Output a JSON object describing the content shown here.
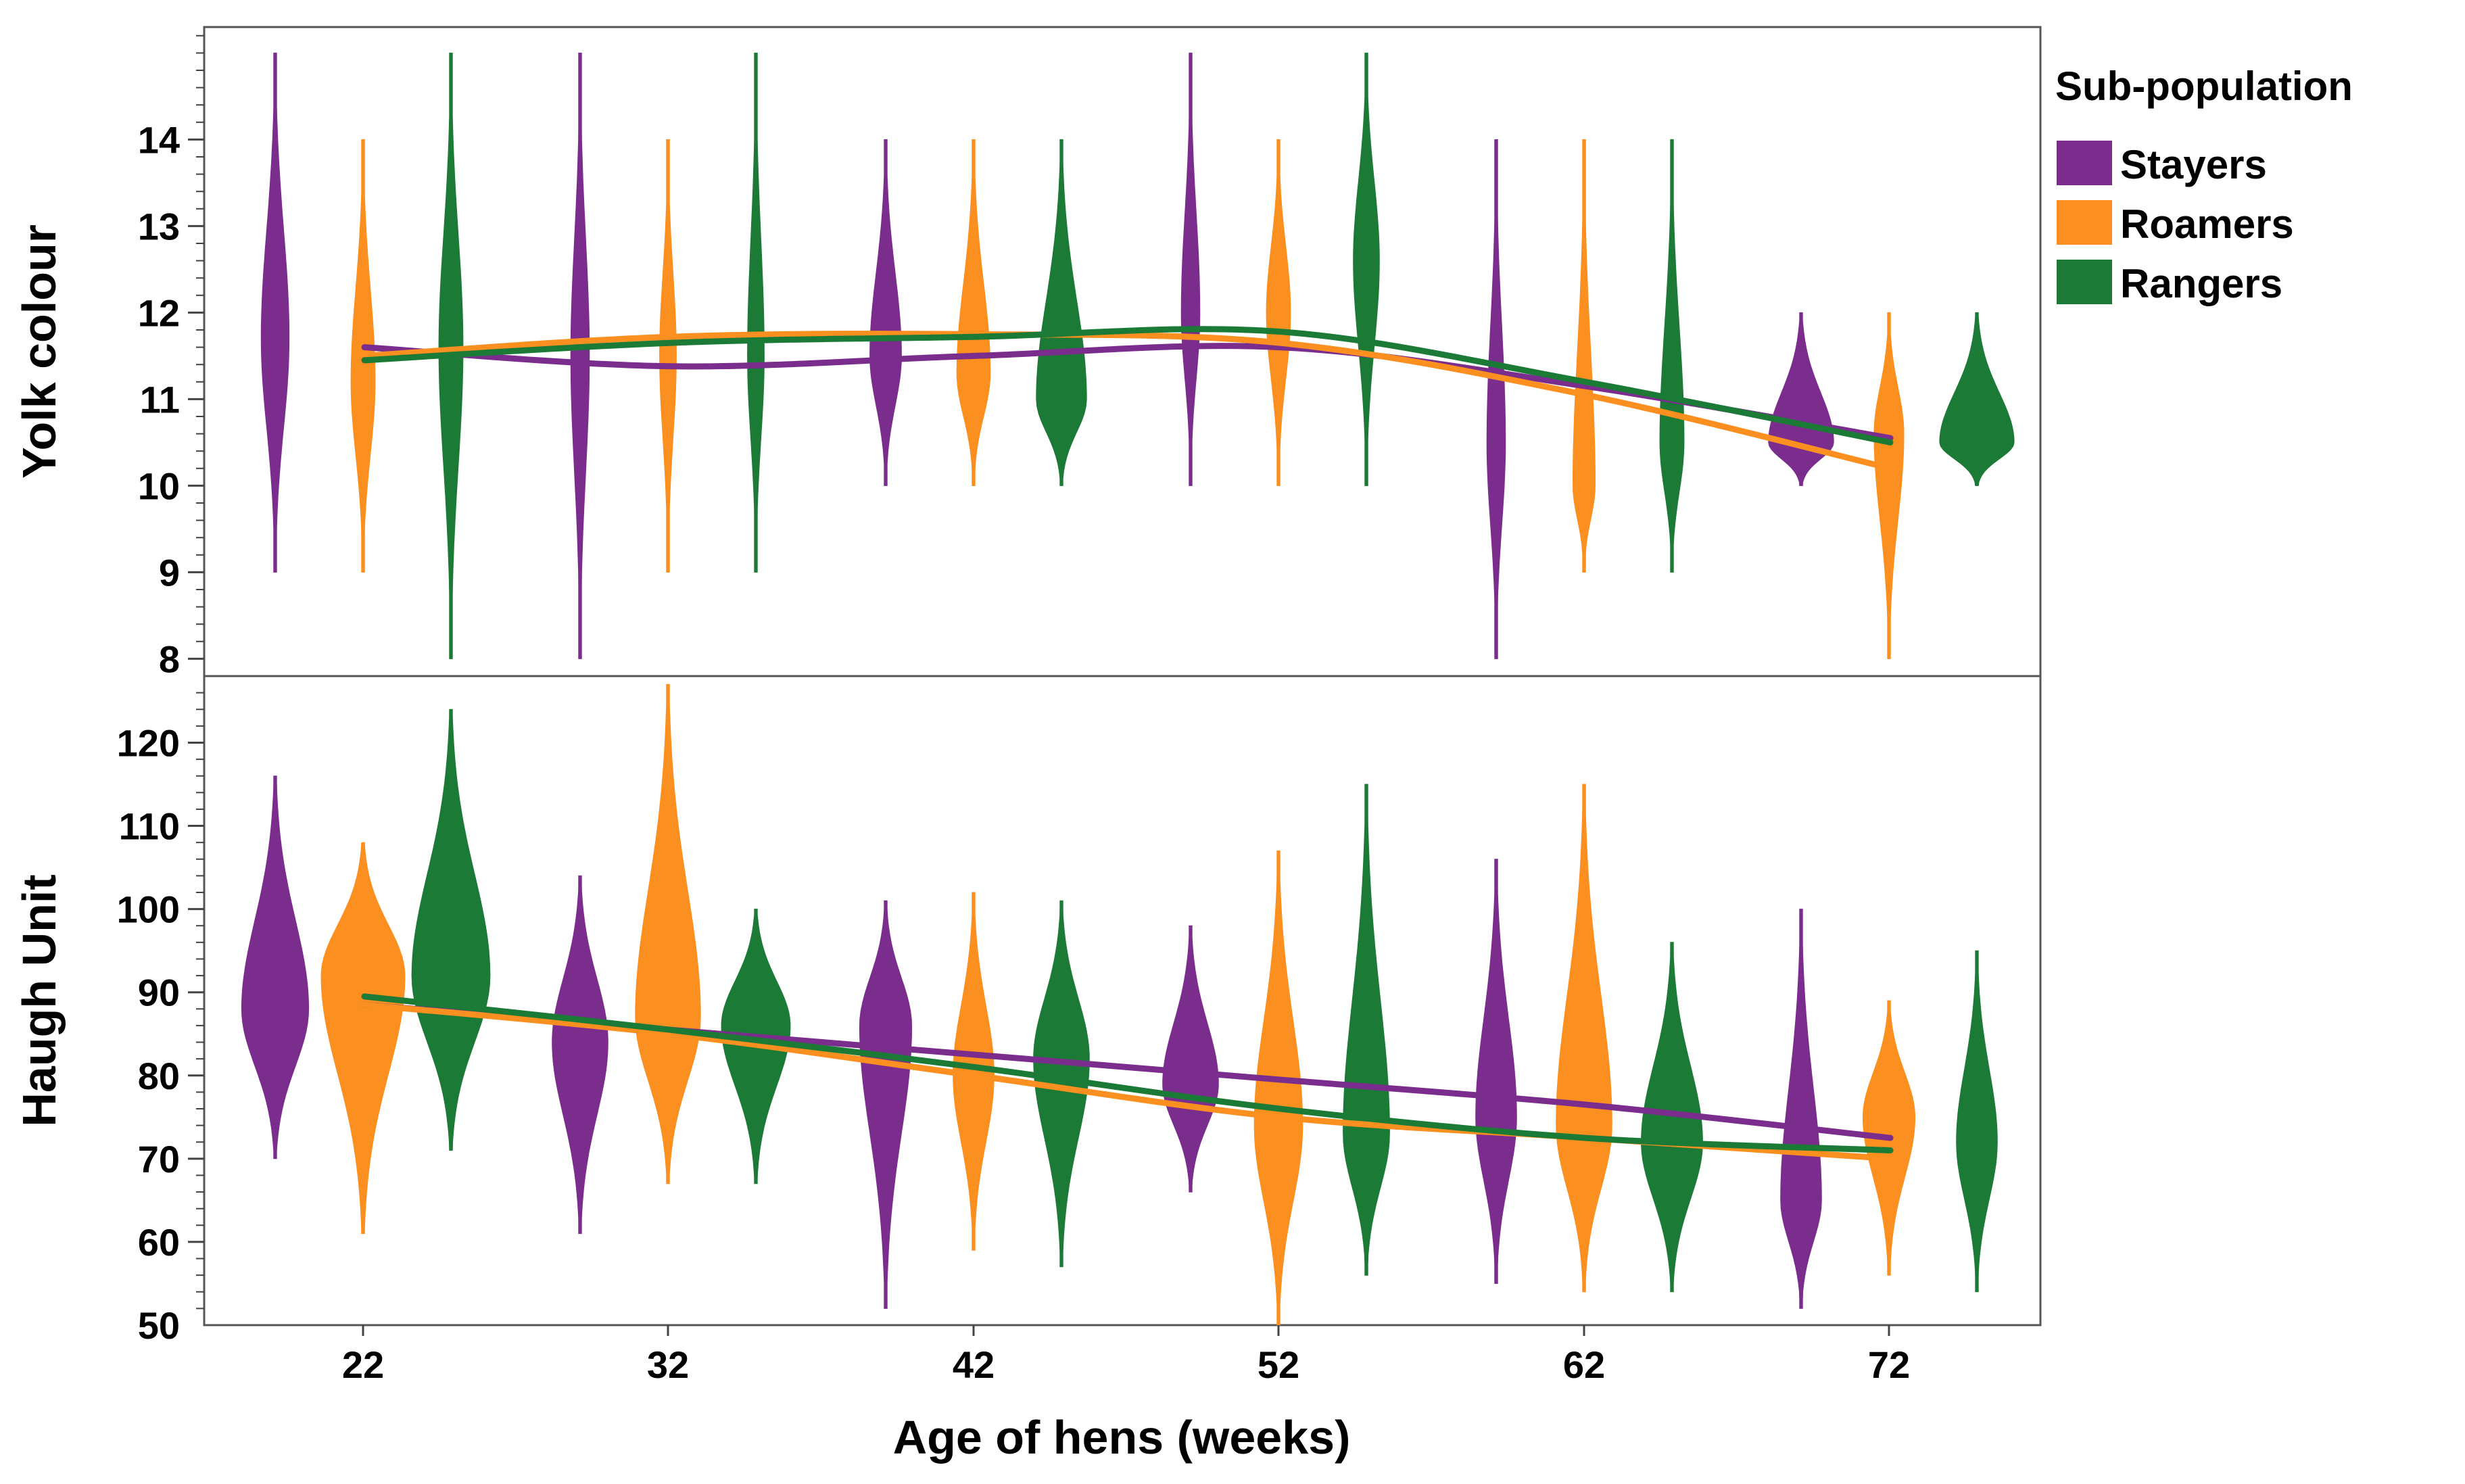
{
  "colors": {
    "Stayers": "#7B2D8E",
    "Roamers": "#FB8F1F",
    "Rangers": "#1B7A36"
  },
  "chart_data": {
    "type": "violin",
    "xlabel": "Age of hens (weeks)",
    "x_ticks": [
      "22",
      "32",
      "42",
      "52",
      "62",
      "72"
    ],
    "legend": {
      "title": "Sub-population",
      "position": "right",
      "entries": [
        "Stayers",
        "Roamers",
        "Rangers"
      ]
    },
    "panels": [
      {
        "ylabel": "Yolk colour",
        "ylim": [
          7.8,
          15.3
        ],
        "yticks": [
          8,
          9,
          10,
          11,
          12,
          13,
          14
        ],
        "series": [
          {
            "name": "Stayers",
            "violins": [
              {
                "week": 22,
                "min": 9,
                "max": 15,
                "peak": 11.7,
                "width": 0.15
              },
              {
                "week": 32,
                "min": 8,
                "max": 15,
                "peak": 11.5,
                "width": 0.1
              },
              {
                "week": 42,
                "min": 10,
                "max": 14,
                "peak": 11.5,
                "width": 0.17
              },
              {
                "week": 52,
                "min": 10,
                "max": 15,
                "peak": 12.0,
                "width": 0.1
              },
              {
                "week": 62,
                "min": 8,
                "max": 14,
                "peak": 10.5,
                "width": 0.1
              },
              {
                "week": 72,
                "min": 10,
                "max": 12,
                "peak": 10.5,
                "width": 0.35
              }
            ],
            "trend": [
              11.6,
              11.38,
              11.5,
              11.6,
              11.15,
              10.55
            ]
          },
          {
            "name": "Roamers",
            "violins": [
              {
                "week": 22,
                "min": 9,
                "max": 14,
                "peak": 11.2,
                "width": 0.13
              },
              {
                "week": 32,
                "min": 9,
                "max": 14,
                "peak": 11.5,
                "width": 0.09
              },
              {
                "week": 42,
                "min": 10,
                "max": 14,
                "peak": 11.3,
                "width": 0.18
              },
              {
                "week": 52,
                "min": 10,
                "max": 14,
                "peak": 12.0,
                "width": 0.13
              },
              {
                "week": 62,
                "min": 9,
                "max": 14,
                "peak": 10.0,
                "width": 0.12
              },
              {
                "week": 72,
                "min": 8,
                "max": 12,
                "peak": 10.6,
                "width": 0.16
              }
            ],
            "trend": [
              11.5,
              11.72,
              11.75,
              11.65,
              11.05,
              10.2
            ]
          },
          {
            "name": "Rangers",
            "violins": [
              {
                "week": 22,
                "min": 8,
                "max": 15,
                "peak": 11.6,
                "width": 0.13
              },
              {
                "week": 32,
                "min": 9,
                "max": 15,
                "peak": 11.5,
                "width": 0.09
              },
              {
                "week": 42,
                "min": 10,
                "max": 14,
                "peak": 11.0,
                "width": 0.27
              },
              {
                "week": 52,
                "min": 10,
                "max": 15,
                "peak": 12.6,
                "width": 0.14
              },
              {
                "week": 62,
                "min": 9,
                "max": 14,
                "peak": 10.5,
                "width": 0.13
              },
              {
                "week": 72,
                "min": 10,
                "max": 12,
                "peak": 10.5,
                "width": 0.4
              }
            ],
            "trend": [
              11.45,
              11.65,
              11.72,
              11.78,
              11.2,
              10.5
            ]
          }
        ]
      },
      {
        "ylabel": "Haugh Unit",
        "ylim": [
          50,
          128
        ],
        "yticks": [
          50,
          60,
          70,
          80,
          90,
          100,
          110,
          120
        ],
        "series": [
          {
            "name": "Stayers",
            "violins": [
              {
                "week": 22,
                "min": 70,
                "max": 116,
                "peak": 88,
                "width": 0.36
              },
              {
                "week": 32,
                "min": 61,
                "max": 104,
                "peak": 84,
                "width": 0.3
              },
              {
                "week": 42,
                "min": 52,
                "max": 101,
                "peak": 86,
                "width": 0.28
              },
              {
                "week": 52,
                "min": 66,
                "max": 98,
                "peak": 79,
                "width": 0.3
              },
              {
                "week": 62,
                "min": 55,
                "max": 106,
                "peak": 75,
                "width": 0.22
              },
              {
                "week": 72,
                "min": 52,
                "max": 100,
                "peak": 65,
                "width": 0.22
              }
            ],
            "trend": [
              88.5,
              85.5,
              82.5,
              79.5,
              76.5,
              72.5
            ]
          },
          {
            "name": "Roamers",
            "violins": [
              {
                "week": 22,
                "min": 61,
                "max": 108,
                "peak": 92,
                "width": 0.45
              },
              {
                "week": 32,
                "min": 67,
                "max": 127,
                "peak": 87,
                "width": 0.35
              },
              {
                "week": 42,
                "min": 59,
                "max": 102,
                "peak": 80,
                "width": 0.22
              },
              {
                "week": 52,
                "min": 50,
                "max": 107,
                "peak": 74,
                "width": 0.26
              },
              {
                "week": 62,
                "min": 54,
                "max": 115,
                "peak": 74,
                "width": 0.3
              },
              {
                "week": 72,
                "min": 56,
                "max": 89,
                "peak": 75,
                "width": 0.28
              }
            ],
            "trend": [
              88.5,
              85.0,
              80.0,
              75.0,
              72.5,
              70.0
            ]
          },
          {
            "name": "Rangers",
            "violins": [
              {
                "week": 22,
                "min": 71,
                "max": 124,
                "peak": 92,
                "width": 0.42
              },
              {
                "week": 32,
                "min": 67,
                "max": 100,
                "peak": 86,
                "width": 0.37
              },
              {
                "week": 42,
                "min": 57,
                "max": 101,
                "peak": 82,
                "width": 0.3
              },
              {
                "week": 52,
                "min": 56,
                "max": 115,
                "peak": 73,
                "width": 0.25
              },
              {
                "week": 62,
                "min": 54,
                "max": 96,
                "peak": 72,
                "width": 0.33
              },
              {
                "week": 72,
                "min": 54,
                "max": 95,
                "peak": 72,
                "width": 0.22
              }
            ],
            "trend": [
              89.5,
              85.5,
              81.0,
              76.0,
              72.5,
              71.0
            ]
          }
        ]
      }
    ]
  }
}
